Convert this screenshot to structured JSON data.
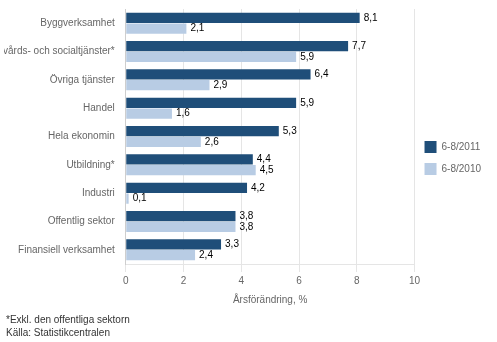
{
  "chart_data": {
    "type": "bar",
    "orientation": "horizontal",
    "categories": [
      "Finansiell verksamhet",
      "Offentlig sektor",
      "Industri",
      "Utbildning*",
      "Hela ekonomin",
      "Handel",
      "Övriga tjänster",
      "Hälsovårds- och socialtjänster*",
      "Byggverksamhet"
    ],
    "series": [
      {
        "name": "6-8/2011",
        "color": "#1F4E79",
        "values": [
          3.3,
          3.8,
          4.2,
          4.4,
          5.3,
          5.9,
          6.4,
          7.7,
          8.1
        ],
        "value_labels": [
          "3,3",
          "3,8",
          "4,2",
          "4,4",
          "5,3",
          "5,9",
          "6,4",
          "7,7",
          "8,1"
        ]
      },
      {
        "name": "6-8/2010",
        "color": "#B8CCE4",
        "values": [
          2.4,
          3.8,
          0.1,
          4.5,
          2.6,
          1.6,
          2.9,
          5.9,
          2.1
        ],
        "value_labels": [
          "2,4",
          "3,8",
          "0,1",
          "4,5",
          "2,6",
          "1,6",
          "2,9",
          "5,9",
          "2,1"
        ]
      }
    ],
    "xlabel": "Årsförändring, %",
    "xlim": [
      0,
      10
    ],
    "xticks": [
      0,
      2,
      4,
      6,
      8,
      10
    ],
    "grid": true,
    "legend": "right",
    "data_labels": true,
    "annotations": [
      "*Exkl. den offentliga sektorn",
      "Källa: Statistikcentralen"
    ]
  }
}
